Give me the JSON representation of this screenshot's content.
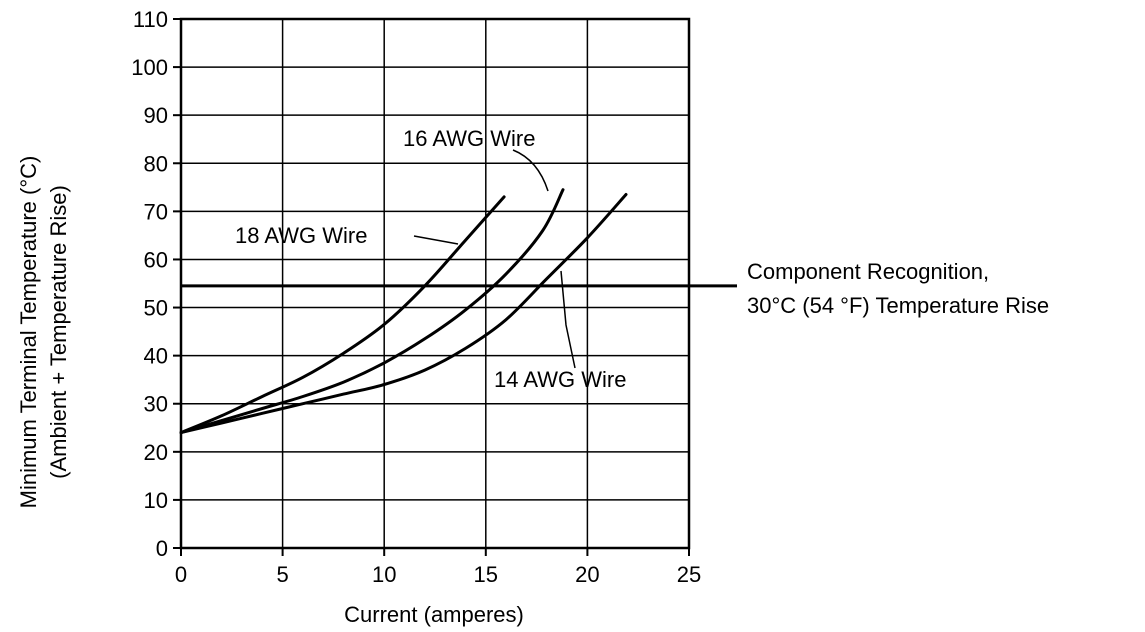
{
  "chart_data": {
    "type": "line",
    "xlabel": "Current (amperes)",
    "ylabel_line1": "Minimum Terminal Temperature  (°C)",
    "ylabel_line2": "(Ambient + Temperature Rise)",
    "xlim": [
      0,
      25
    ],
    "ylim": [
      0,
      110
    ],
    "x_ticks": [
      0,
      5,
      10,
      15,
      20,
      25
    ],
    "y_ticks": [
      0,
      10,
      20,
      30,
      40,
      50,
      60,
      70,
      80,
      90,
      100,
      110
    ],
    "grid": true,
    "series": [
      {
        "name": "18 AWG Wire",
        "x": [
          0,
          2,
          4,
          6,
          8,
          10,
          12,
          14,
          15.9
        ],
        "y": [
          24,
          27.5,
          31.5,
          35.5,
          40.5,
          46.5,
          54.5,
          64,
          73
        ]
      },
      {
        "name": "16 AWG Wire",
        "x": [
          0,
          2,
          4,
          6,
          8,
          10,
          12,
          14,
          16,
          17.8,
          18.8
        ],
        "y": [
          24,
          26.5,
          29,
          31.5,
          34.5,
          38.5,
          43.5,
          49.5,
          57,
          66,
          74.5
        ]
      },
      {
        "name": "14 AWG Wire",
        "x": [
          0,
          2,
          4,
          6,
          8,
          10,
          12,
          14,
          16,
          18,
          20,
          21.9
        ],
        "y": [
          24,
          26,
          28,
          30,
          32,
          34,
          37,
          41.5,
          47.5,
          56,
          64.5,
          73.5
        ]
      }
    ],
    "reference_line": {
      "y": 54.5,
      "label_line1": "Component Recognition,",
      "label_line2": "30°C (54 °F) Temperature Rise"
    }
  }
}
